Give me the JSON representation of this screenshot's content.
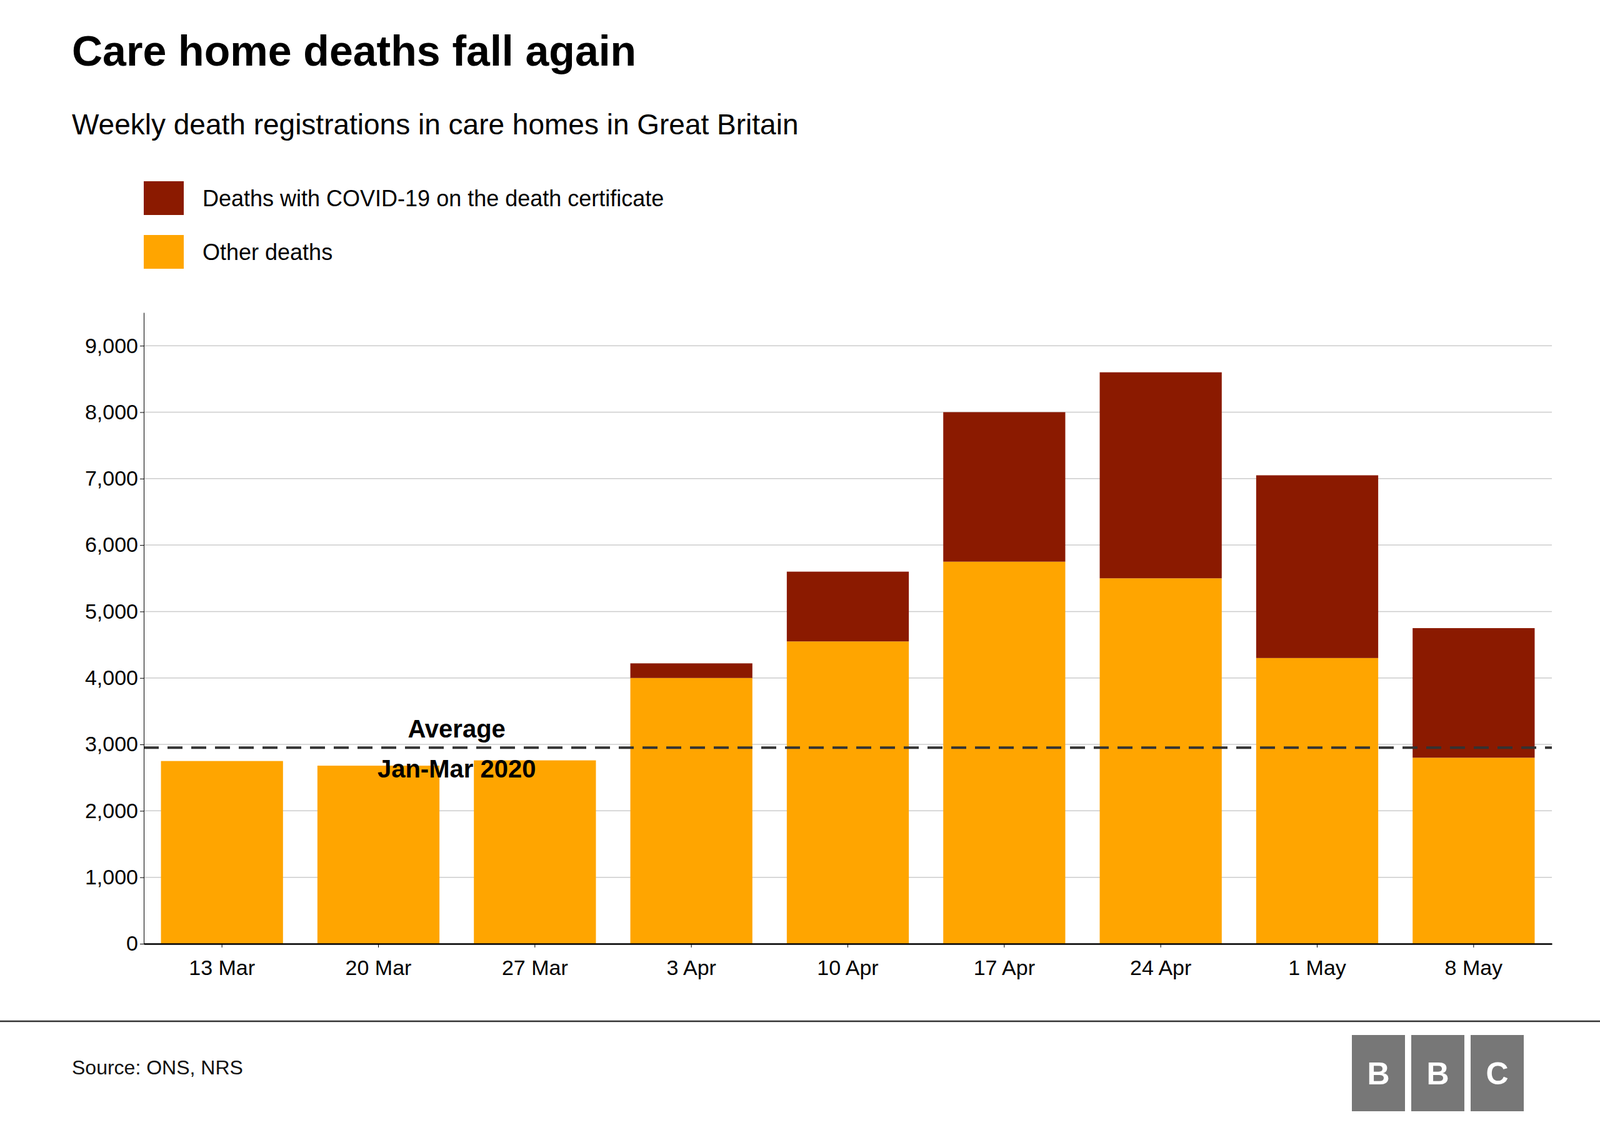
{
  "chart_data": {
    "type": "bar",
    "stacked": true,
    "title": "Care home deaths fall again",
    "subtitle": "Weekly death registrations in care homes in Great Britain",
    "categories": [
      "13 Mar",
      "20 Mar",
      "27 Mar",
      "3 Apr",
      "10 Apr",
      "17 Apr",
      "24 Apr",
      "1 May",
      "8 May"
    ],
    "series": [
      {
        "name": "Other deaths",
        "color": "#FFA500",
        "values": [
          2750,
          2680,
          2760,
          4000,
          4550,
          5750,
          5500,
          4300,
          2800
        ]
      },
      {
        "name": "Deaths with COVID-19 on the death certificate",
        "color": "#8B1A00",
        "values": [
          0,
          0,
          0,
          220,
          1050,
          2250,
          3100,
          2750,
          1950
        ]
      }
    ],
    "ylim": [
      0,
      9500
    ],
    "yticks": [
      0,
      {
        "value": 1000,
        "label": "1,000"
      },
      {
        "value": 2000,
        "label": "2,000"
      },
      {
        "value": 3000,
        "label": "3,000"
      },
      {
        "value": 4000,
        "label": "4,000"
      },
      {
        "value": 5000,
        "label": "5,000"
      },
      {
        "value": 6000,
        "label": "6,000"
      },
      {
        "value": 7000,
        "label": "7,000"
      },
      {
        "value": 8000,
        "label": "8,000"
      },
      {
        "value": 9000,
        "label": "9,000"
      }
    ],
    "grid": true,
    "legend": "top-left",
    "annotations": [
      {
        "type": "hline",
        "value": 2950,
        "text": [
          "Average",
          "Jan-Mar 2020"
        ],
        "color": "#333333",
        "line_style": "dashed"
      }
    ],
    "source": "Source: ONS, NRS",
    "logo": [
      "B",
      "B",
      "C"
    ]
  }
}
